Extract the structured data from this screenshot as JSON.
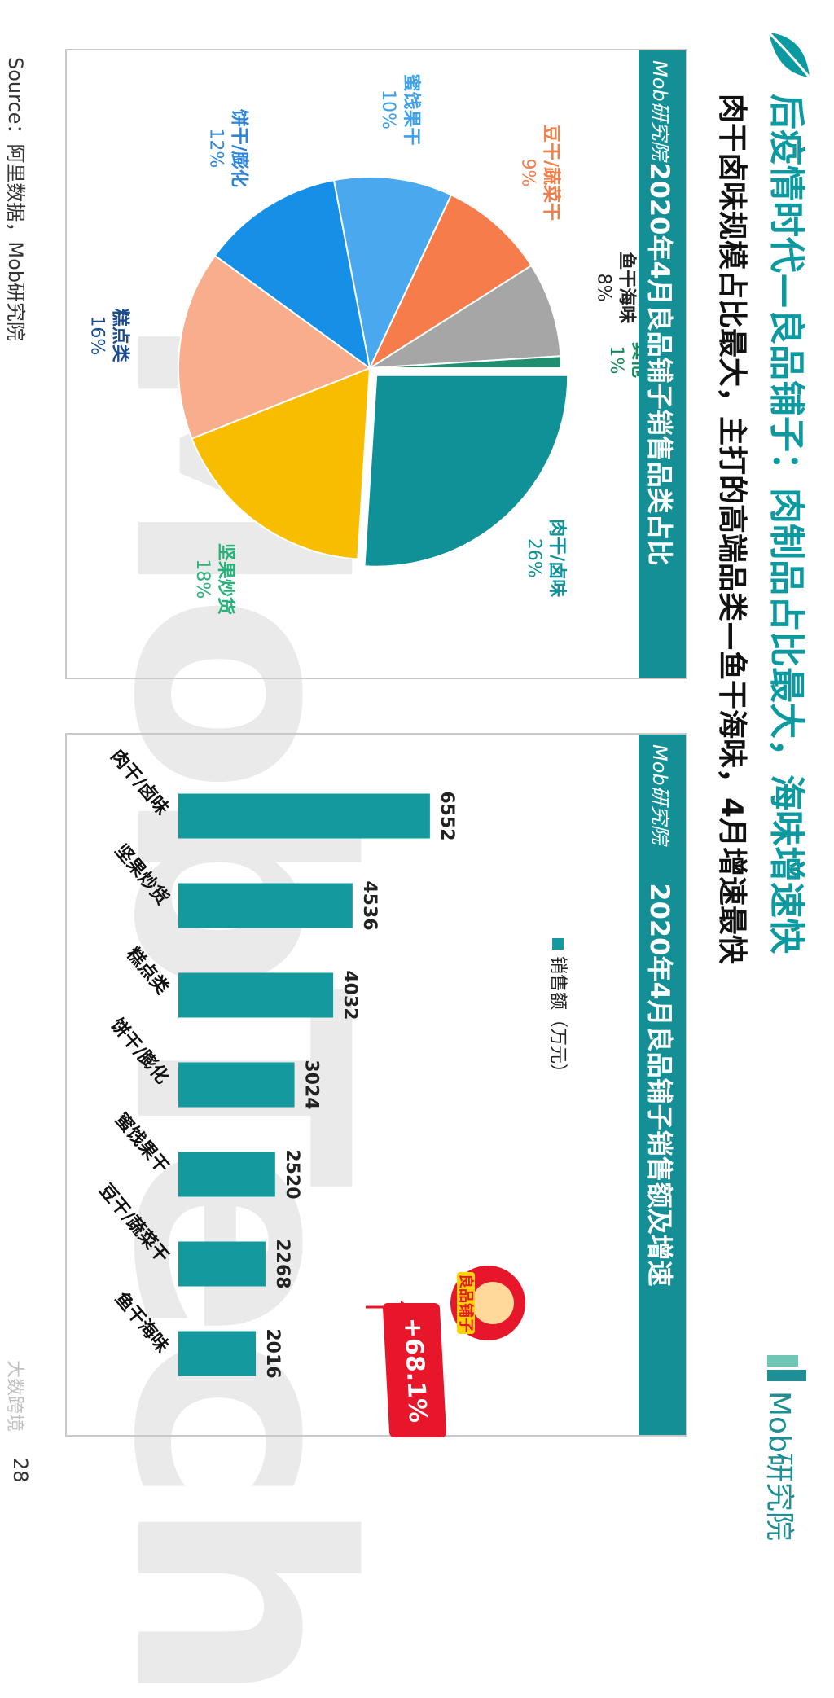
{
  "header": {
    "title": "后疫情时代—良品铺子：肉制品占比最大，海味增速快",
    "subtitle": "肉干卤味规模占比最大，主打的高端品类—鱼干海味，4月增速最快",
    "brand": "Mob研究院"
  },
  "watermark": "MobTech",
  "pie_panel": {
    "tag": "Mob研究院"
  },
  "bar_panel": {
    "tag": "Mob研究院"
  },
  "colors": {
    "accent": "#0c9aa0",
    "panel_header": "#138f95",
    "bar": "#13999e",
    "badge": "#e8162a"
  },
  "chart_data": [
    {
      "type": "pie",
      "title": "2020年4月良品铺子销售品类占比",
      "categories": [
        "肉干/卤味",
        "坚果炒货",
        "糕点类",
        "饼干/膨化",
        "蜜饯果干",
        "豆干/蔬菜干",
        "鱼干海味",
        "其他"
      ],
      "values": [
        26,
        18,
        16,
        12,
        10,
        9,
        8,
        1
      ],
      "labels": [
        "26%",
        "18%",
        "16%",
        "12%",
        "10%",
        "9%",
        "8%",
        "1%"
      ],
      "colors": [
        "#0f9197",
        "#f9bd00",
        "#f8ad8c",
        "#1590e6",
        "#4aa8ef",
        "#f67c4b",
        "#a6a6a6",
        "#1f8f6f"
      ],
      "label_colors": [
        "#10929a",
        "#25b37a",
        "#1a4d8f",
        "#2f86d6",
        "#3da0e8",
        "#f07e4a",
        "#222222",
        "#148a5c"
      ]
    },
    {
      "type": "bar",
      "title": "2020年4月良品铺子销售额及增速",
      "categories": [
        "肉干/卤味",
        "坚果炒货",
        "糕点类",
        "饼干/膨化",
        "蜜饯果干",
        "豆干/蔬菜干",
        "鱼干海味"
      ],
      "series": [
        {
          "name": "销售额（万元）",
          "values": [
            6552,
            4536,
            4032,
            3024,
            2520,
            2268,
            2016
          ]
        }
      ],
      "data_labels": [
        "6552",
        "4536",
        "4032",
        "3024",
        "2520",
        "2268",
        "2016"
      ],
      "annotation": "+68.1%"
    }
  ],
  "logo": {
    "text": "良品铺子"
  },
  "footer": {
    "source": "Source：阿里数据，Mob研究院",
    "page": "28",
    "mark": "大数跨境"
  }
}
